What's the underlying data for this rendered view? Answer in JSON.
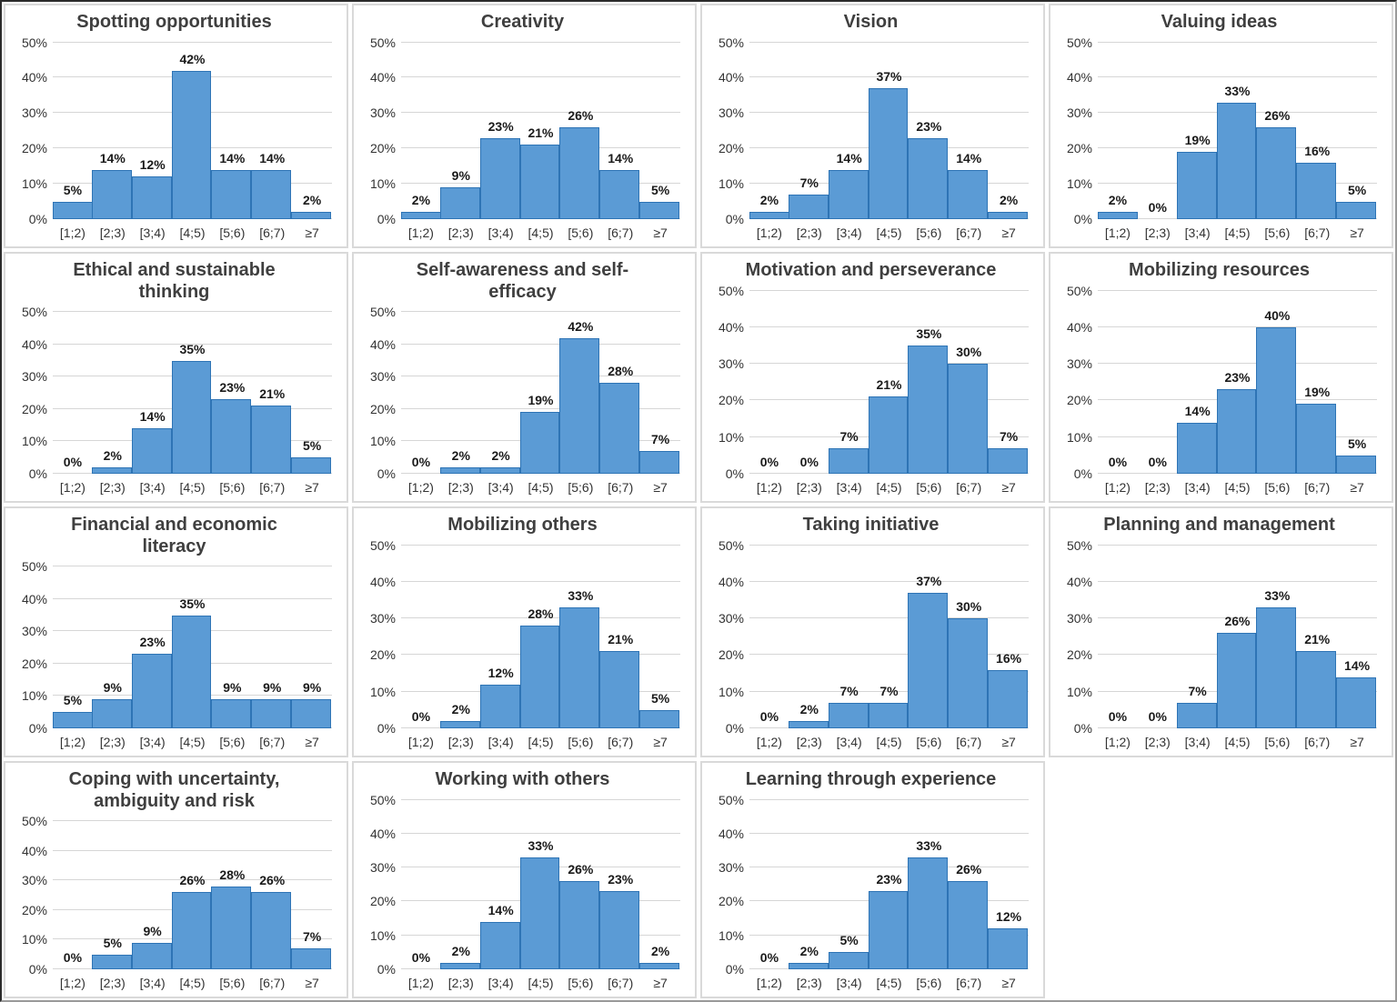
{
  "chart_data": {
    "type": "bar",
    "layout": "4x4-grid, last cell empty",
    "categories": [
      "[1;2)",
      "[2;3)",
      "[3;4)",
      "[4;5)",
      "[5;6)",
      "[6;7)",
      "≥7"
    ],
    "y_ticks": [
      "0%",
      "10%",
      "20%",
      "30%",
      "40%",
      "50%"
    ],
    "ylim": [
      0,
      50
    ],
    "grid": true,
    "value_suffix": "%",
    "bar_color": "#5b9bd5",
    "bar_border_color": "#2e74b5",
    "gridline_color": "#d6d6d6",
    "title_color": "#3f3f3f",
    "charts": [
      {
        "title": "Spotting opportunities",
        "values": [
          5,
          14,
          12,
          42,
          14,
          14,
          2
        ]
      },
      {
        "title": "Creativity",
        "values": [
          2,
          9,
          23,
          21,
          26,
          14,
          5
        ]
      },
      {
        "title": "Vision",
        "values": [
          2,
          7,
          14,
          37,
          23,
          14,
          2
        ]
      },
      {
        "title": "Valuing ideas",
        "values": [
          2,
          0,
          19,
          33,
          26,
          16,
          5
        ]
      },
      {
        "title": "Ethical and sustainable\nthinking",
        "values": [
          0,
          2,
          14,
          35,
          23,
          21,
          5
        ]
      },
      {
        "title": "Self-awareness and self-\nefficacy",
        "values": [
          0,
          2,
          2,
          19,
          42,
          28,
          7
        ]
      },
      {
        "title": "Motivation and perseverance",
        "values": [
          0,
          0,
          7,
          21,
          35,
          30,
          7
        ]
      },
      {
        "title": "Mobilizing resources",
        "values": [
          0,
          0,
          14,
          23,
          40,
          19,
          5
        ]
      },
      {
        "title": "Financial and economic\nliteracy",
        "values": [
          5,
          9,
          23,
          35,
          9,
          9,
          9
        ]
      },
      {
        "title": "Mobilizing others",
        "values": [
          0,
          2,
          12,
          28,
          33,
          21,
          5
        ]
      },
      {
        "title": "Taking initiative",
        "values": [
          0,
          2,
          7,
          7,
          37,
          30,
          16
        ]
      },
      {
        "title": "Planning and management",
        "values": [
          0,
          0,
          7,
          26,
          33,
          21,
          14
        ]
      },
      {
        "title": "Coping with uncertainty,\nambiguity and risk",
        "values": [
          0,
          5,
          9,
          26,
          28,
          26,
          7
        ]
      },
      {
        "title": "Working with others",
        "values": [
          0,
          2,
          14,
          33,
          26,
          23,
          2
        ]
      },
      {
        "title": "Learning through experience",
        "values": [
          0,
          2,
          5,
          23,
          33,
          26,
          12
        ]
      }
    ]
  }
}
